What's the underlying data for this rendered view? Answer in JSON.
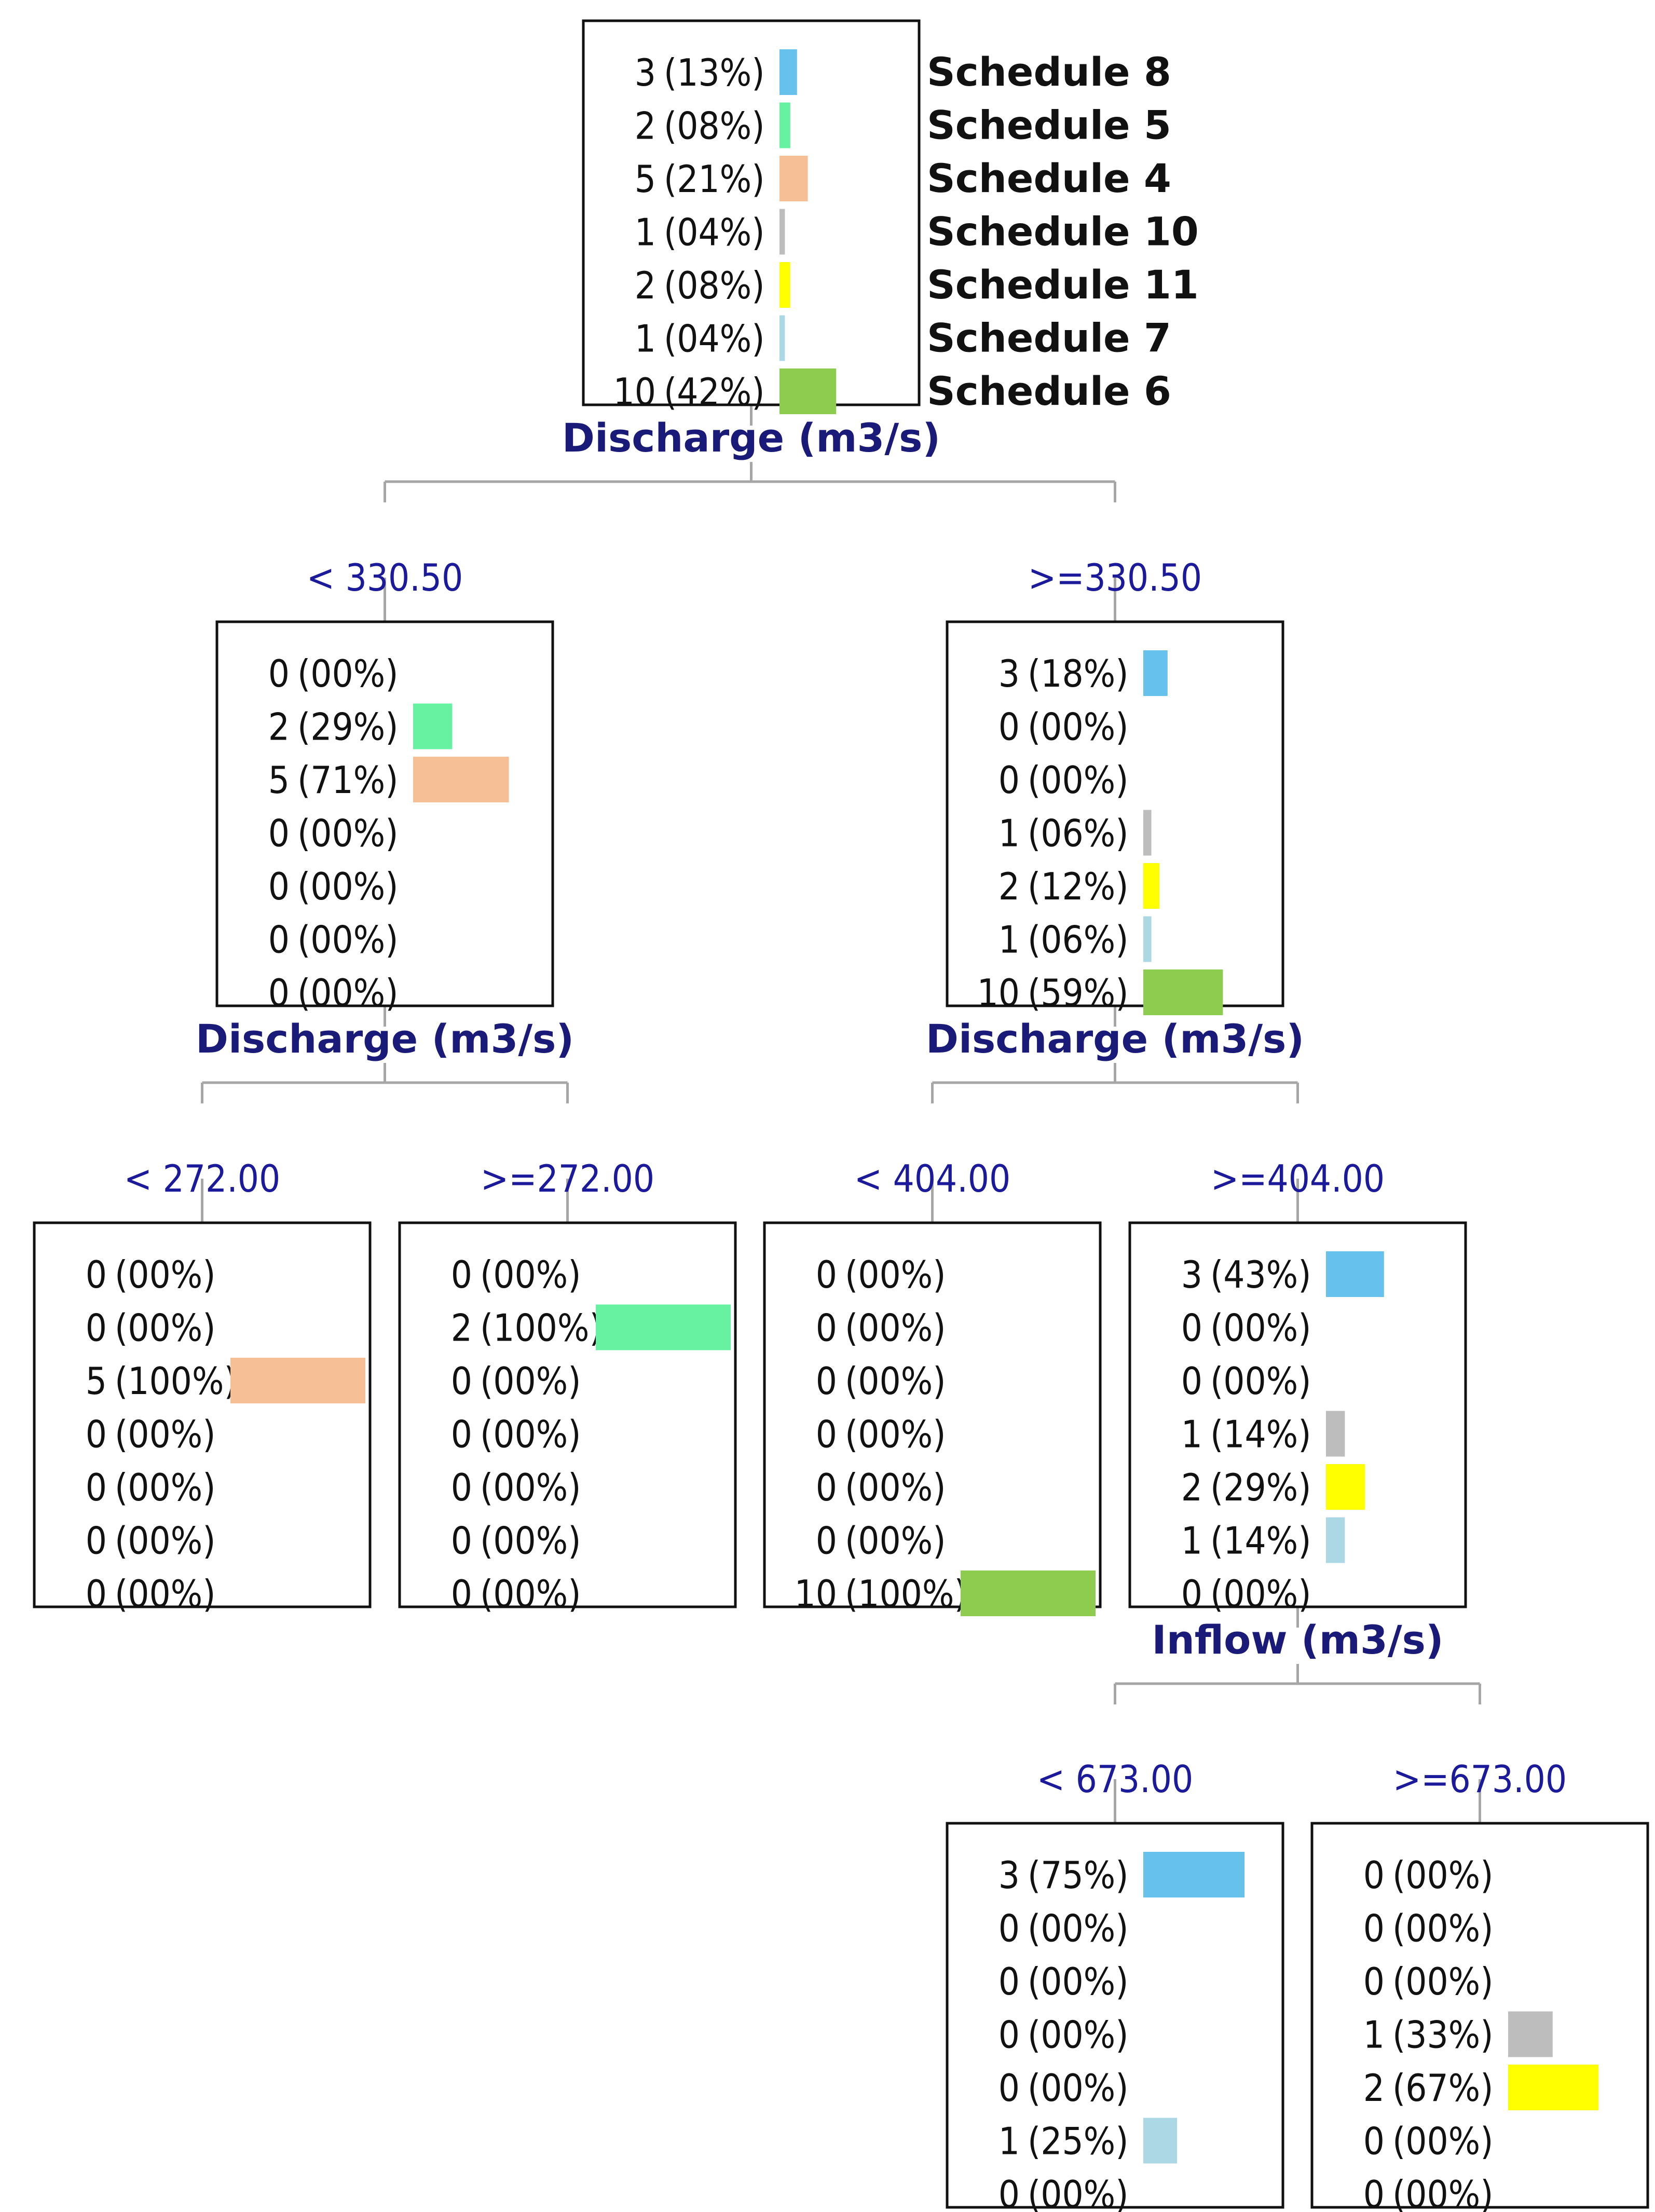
{
  "palette": {
    "Schedule 8": "#66c2ec",
    "Schedule 5": "#66f2a0",
    "Schedule 4": "#f7bf96",
    "Schedule 10": "#bdbdbd",
    "Schedule 11": "#ffff00",
    "Schedule 7": "#acd8e6",
    "Schedule 6": "#8dcc4e"
  },
  "legend": [
    "Schedule 8",
    "Schedule 5",
    "Schedule 4",
    "Schedule 10",
    "Schedule 11",
    "Schedule 7",
    "Schedule 6"
  ],
  "nodes": [
    {
      "id": "root",
      "parent": null,
      "branch_label": "",
      "split_label": "Discharge (m3/s)",
      "rows": [
        {
          "count": "3",
          "pct": "(13%)",
          "value": 0.13
        },
        {
          "count": "2",
          "pct": "(08%)",
          "value": 0.08
        },
        {
          "count": "5",
          "pct": "(21%)",
          "value": 0.21
        },
        {
          "count": "1",
          "pct": "(04%)",
          "value": 0.04
        },
        {
          "count": "2",
          "pct": "(08%)",
          "value": 0.08
        },
        {
          "count": "1",
          "pct": "(04%)",
          "value": 0.04
        },
        {
          "count": "10",
          "pct": "(42%)",
          "value": 0.42
        }
      ]
    },
    {
      "id": "n1",
      "parent": "root",
      "branch_label": "< 330.50",
      "split_label": "Discharge (m3/s)",
      "rows": [
        {
          "count": "0",
          "pct": "(00%)",
          "value": 0
        },
        {
          "count": "2",
          "pct": "(29%)",
          "value": 0.29
        },
        {
          "count": "5",
          "pct": "(71%)",
          "value": 0.71
        },
        {
          "count": "0",
          "pct": "(00%)",
          "value": 0
        },
        {
          "count": "0",
          "pct": "(00%)",
          "value": 0
        },
        {
          "count": "0",
          "pct": "(00%)",
          "value": 0
        },
        {
          "count": "0",
          "pct": "(00%)",
          "value": 0
        }
      ]
    },
    {
      "id": "n2",
      "parent": "root",
      "branch_label": ">=330.50",
      "split_label": "Discharge (m3/s)",
      "rows": [
        {
          "count": "3",
          "pct": "(18%)",
          "value": 0.18
        },
        {
          "count": "0",
          "pct": "(00%)",
          "value": 0
        },
        {
          "count": "0",
          "pct": "(00%)",
          "value": 0
        },
        {
          "count": "1",
          "pct": "(06%)",
          "value": 0.06
        },
        {
          "count": "2",
          "pct": "(12%)",
          "value": 0.12
        },
        {
          "count": "1",
          "pct": "(06%)",
          "value": 0.06
        },
        {
          "count": "10",
          "pct": "(59%)",
          "value": 0.59
        }
      ]
    },
    {
      "id": "n3",
      "parent": "n1",
      "branch_label": "< 272.00",
      "split_label": "",
      "rows": [
        {
          "count": "0",
          "pct": "(00%)",
          "value": 0
        },
        {
          "count": "0",
          "pct": "(00%)",
          "value": 0
        },
        {
          "count": "5",
          "pct": "(100%)",
          "value": 1
        },
        {
          "count": "0",
          "pct": "(00%)",
          "value": 0
        },
        {
          "count": "0",
          "pct": "(00%)",
          "value": 0
        },
        {
          "count": "0",
          "pct": "(00%)",
          "value": 0
        },
        {
          "count": "0",
          "pct": "(00%)",
          "value": 0
        }
      ]
    },
    {
      "id": "n4",
      "parent": "n1",
      "branch_label": ">=272.00",
      "split_label": "",
      "rows": [
        {
          "count": "0",
          "pct": "(00%)",
          "value": 0
        },
        {
          "count": "2",
          "pct": "(100%)",
          "value": 1
        },
        {
          "count": "0",
          "pct": "(00%)",
          "value": 0
        },
        {
          "count": "0",
          "pct": "(00%)",
          "value": 0
        },
        {
          "count": "0",
          "pct": "(00%)",
          "value": 0
        },
        {
          "count": "0",
          "pct": "(00%)",
          "value": 0
        },
        {
          "count": "0",
          "pct": "(00%)",
          "value": 0
        }
      ]
    },
    {
      "id": "n5",
      "parent": "n2",
      "branch_label": "< 404.00",
      "split_label": "",
      "rows": [
        {
          "count": "0",
          "pct": "(00%)",
          "value": 0
        },
        {
          "count": "0",
          "pct": "(00%)",
          "value": 0
        },
        {
          "count": "0",
          "pct": "(00%)",
          "value": 0
        },
        {
          "count": "0",
          "pct": "(00%)",
          "value": 0
        },
        {
          "count": "0",
          "pct": "(00%)",
          "value": 0
        },
        {
          "count": "0",
          "pct": "(00%)",
          "value": 0
        },
        {
          "count": "10",
          "pct": "(100%)",
          "value": 1
        }
      ]
    },
    {
      "id": "n6",
      "parent": "n2",
      "branch_label": ">=404.00",
      "split_label": "Inflow (m3/s)",
      "rows": [
        {
          "count": "3",
          "pct": "(43%)",
          "value": 0.43
        },
        {
          "count": "0",
          "pct": "(00%)",
          "value": 0
        },
        {
          "count": "0",
          "pct": "(00%)",
          "value": 0
        },
        {
          "count": "1",
          "pct": "(14%)",
          "value": 0.14
        },
        {
          "count": "2",
          "pct": "(29%)",
          "value": 0.29
        },
        {
          "count": "1",
          "pct": "(14%)",
          "value": 0.14
        },
        {
          "count": "0",
          "pct": "(00%)",
          "value": 0
        }
      ]
    },
    {
      "id": "n7",
      "parent": "n6",
      "branch_label": "< 673.00",
      "split_label": "",
      "rows": [
        {
          "count": "3",
          "pct": "(75%)",
          "value": 0.75
        },
        {
          "count": "0",
          "pct": "(00%)",
          "value": 0
        },
        {
          "count": "0",
          "pct": "(00%)",
          "value": 0
        },
        {
          "count": "0",
          "pct": "(00%)",
          "value": 0
        },
        {
          "count": "0",
          "pct": "(00%)",
          "value": 0
        },
        {
          "count": "1",
          "pct": "(25%)",
          "value": 0.25
        },
        {
          "count": "0",
          "pct": "(00%)",
          "value": 0
        }
      ]
    },
    {
      "id": "n8",
      "parent": "n6",
      "branch_label": ">=673.00",
      "split_label": "",
      "rows": [
        {
          "count": "0",
          "pct": "(00%)",
          "value": 0
        },
        {
          "count": "0",
          "pct": "(00%)",
          "value": 0
        },
        {
          "count": "0",
          "pct": "(00%)",
          "value": 0
        },
        {
          "count": "1",
          "pct": "(33%)",
          "value": 0.33
        },
        {
          "count": "2",
          "pct": "(67%)",
          "value": 0.67
        },
        {
          "count": "0",
          "pct": "(00%)",
          "value": 0
        },
        {
          "count": "0",
          "pct": "(00%)",
          "value": 0
        }
      ]
    }
  ]
}
